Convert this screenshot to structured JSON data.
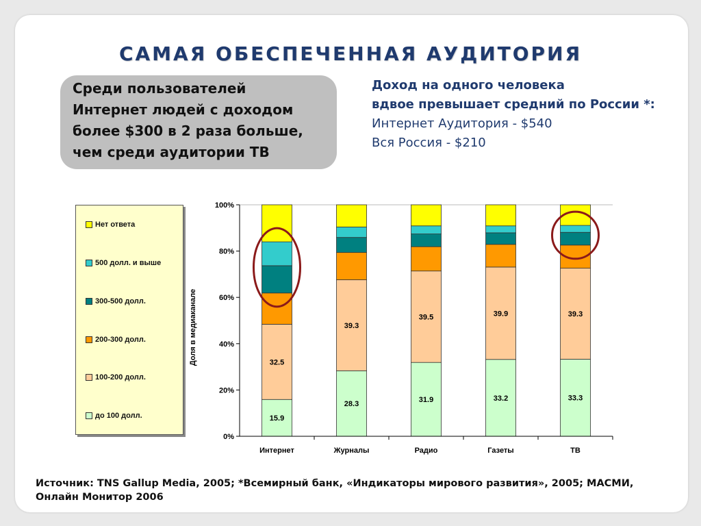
{
  "title": "САМАЯ ОБЕСПЕЧЕННАЯ АУДИТОРИЯ",
  "callout": {
    "lines": [
      "Среди пользователей",
      "Интернет людей с доходом",
      "более $300 в 2 раза больше,",
      "чем среди аудитории ТВ"
    ]
  },
  "info": {
    "line1": "Доход на одного человека",
    "line2": "вдвое превышает средний по России",
    "star": "*:",
    "internet_label": "Интернет Аудитория",
    "internet_value": "- $540",
    "russia_label": "Вся Россия",
    "russia_value": "- $210"
  },
  "source": {
    "line1": "Источник: TNS Gallup Media, 2005; *Всемирный банк, «Индикаторы  мирового развития», 2005; МАСМИ,",
    "line2": "Онлайн Монитор 2006"
  },
  "chart_data": {
    "type": "bar",
    "stacked": true,
    "ylabel": "Доля в медиаканале",
    "ylim": [
      0,
      100
    ],
    "ytick_labels": [
      "0%",
      "20%",
      "40%",
      "60%",
      "80%",
      "100%"
    ],
    "categories": [
      "Интернет",
      "Журналы",
      "Радио",
      "Газеты",
      "ТВ"
    ],
    "series": [
      {
        "name": "до 100 долл.",
        "color": "#ccffcc",
        "values": [
          15.9,
          28.3,
          31.9,
          33.2,
          33.3
        ],
        "show_labels": true
      },
      {
        "name": "100-200 долл.",
        "color": "#ffcc99",
        "values": [
          32.5,
          39.3,
          39.5,
          39.9,
          39.3
        ],
        "show_labels": true
      },
      {
        "name": "200-300 долл.",
        "color": "#ff9900",
        "values": [
          13.5,
          11.8,
          10.5,
          9.8,
          10.0
        ],
        "show_labels": false
      },
      {
        "name": "300-500 долл.",
        "color": "#008080",
        "values": [
          11.8,
          6.5,
          5.5,
          5.0,
          5.5
        ],
        "show_labels": false
      },
      {
        "name": "500 долл. и выше",
        "color": "#33cccc",
        "values": [
          10.3,
          4.5,
          3.5,
          3.0,
          3.0
        ],
        "show_labels": false
      },
      {
        "name": "Нет ответа",
        "color": "#ffff00",
        "values": [
          16.0,
          9.6,
          9.1,
          9.1,
          8.9
        ],
        "show_labels": false
      }
    ],
    "legend_order": [
      "Нет ответа",
      "500 долл. и выше",
      "300-500 долл.",
      "200-300 долл.",
      "100-200 долл.",
      "до 100 долл."
    ],
    "legend_position": "left",
    "highlighted_categories": [
      "Интернет",
      "ТВ"
    ],
    "highlight_color": "#8b1a1a"
  }
}
